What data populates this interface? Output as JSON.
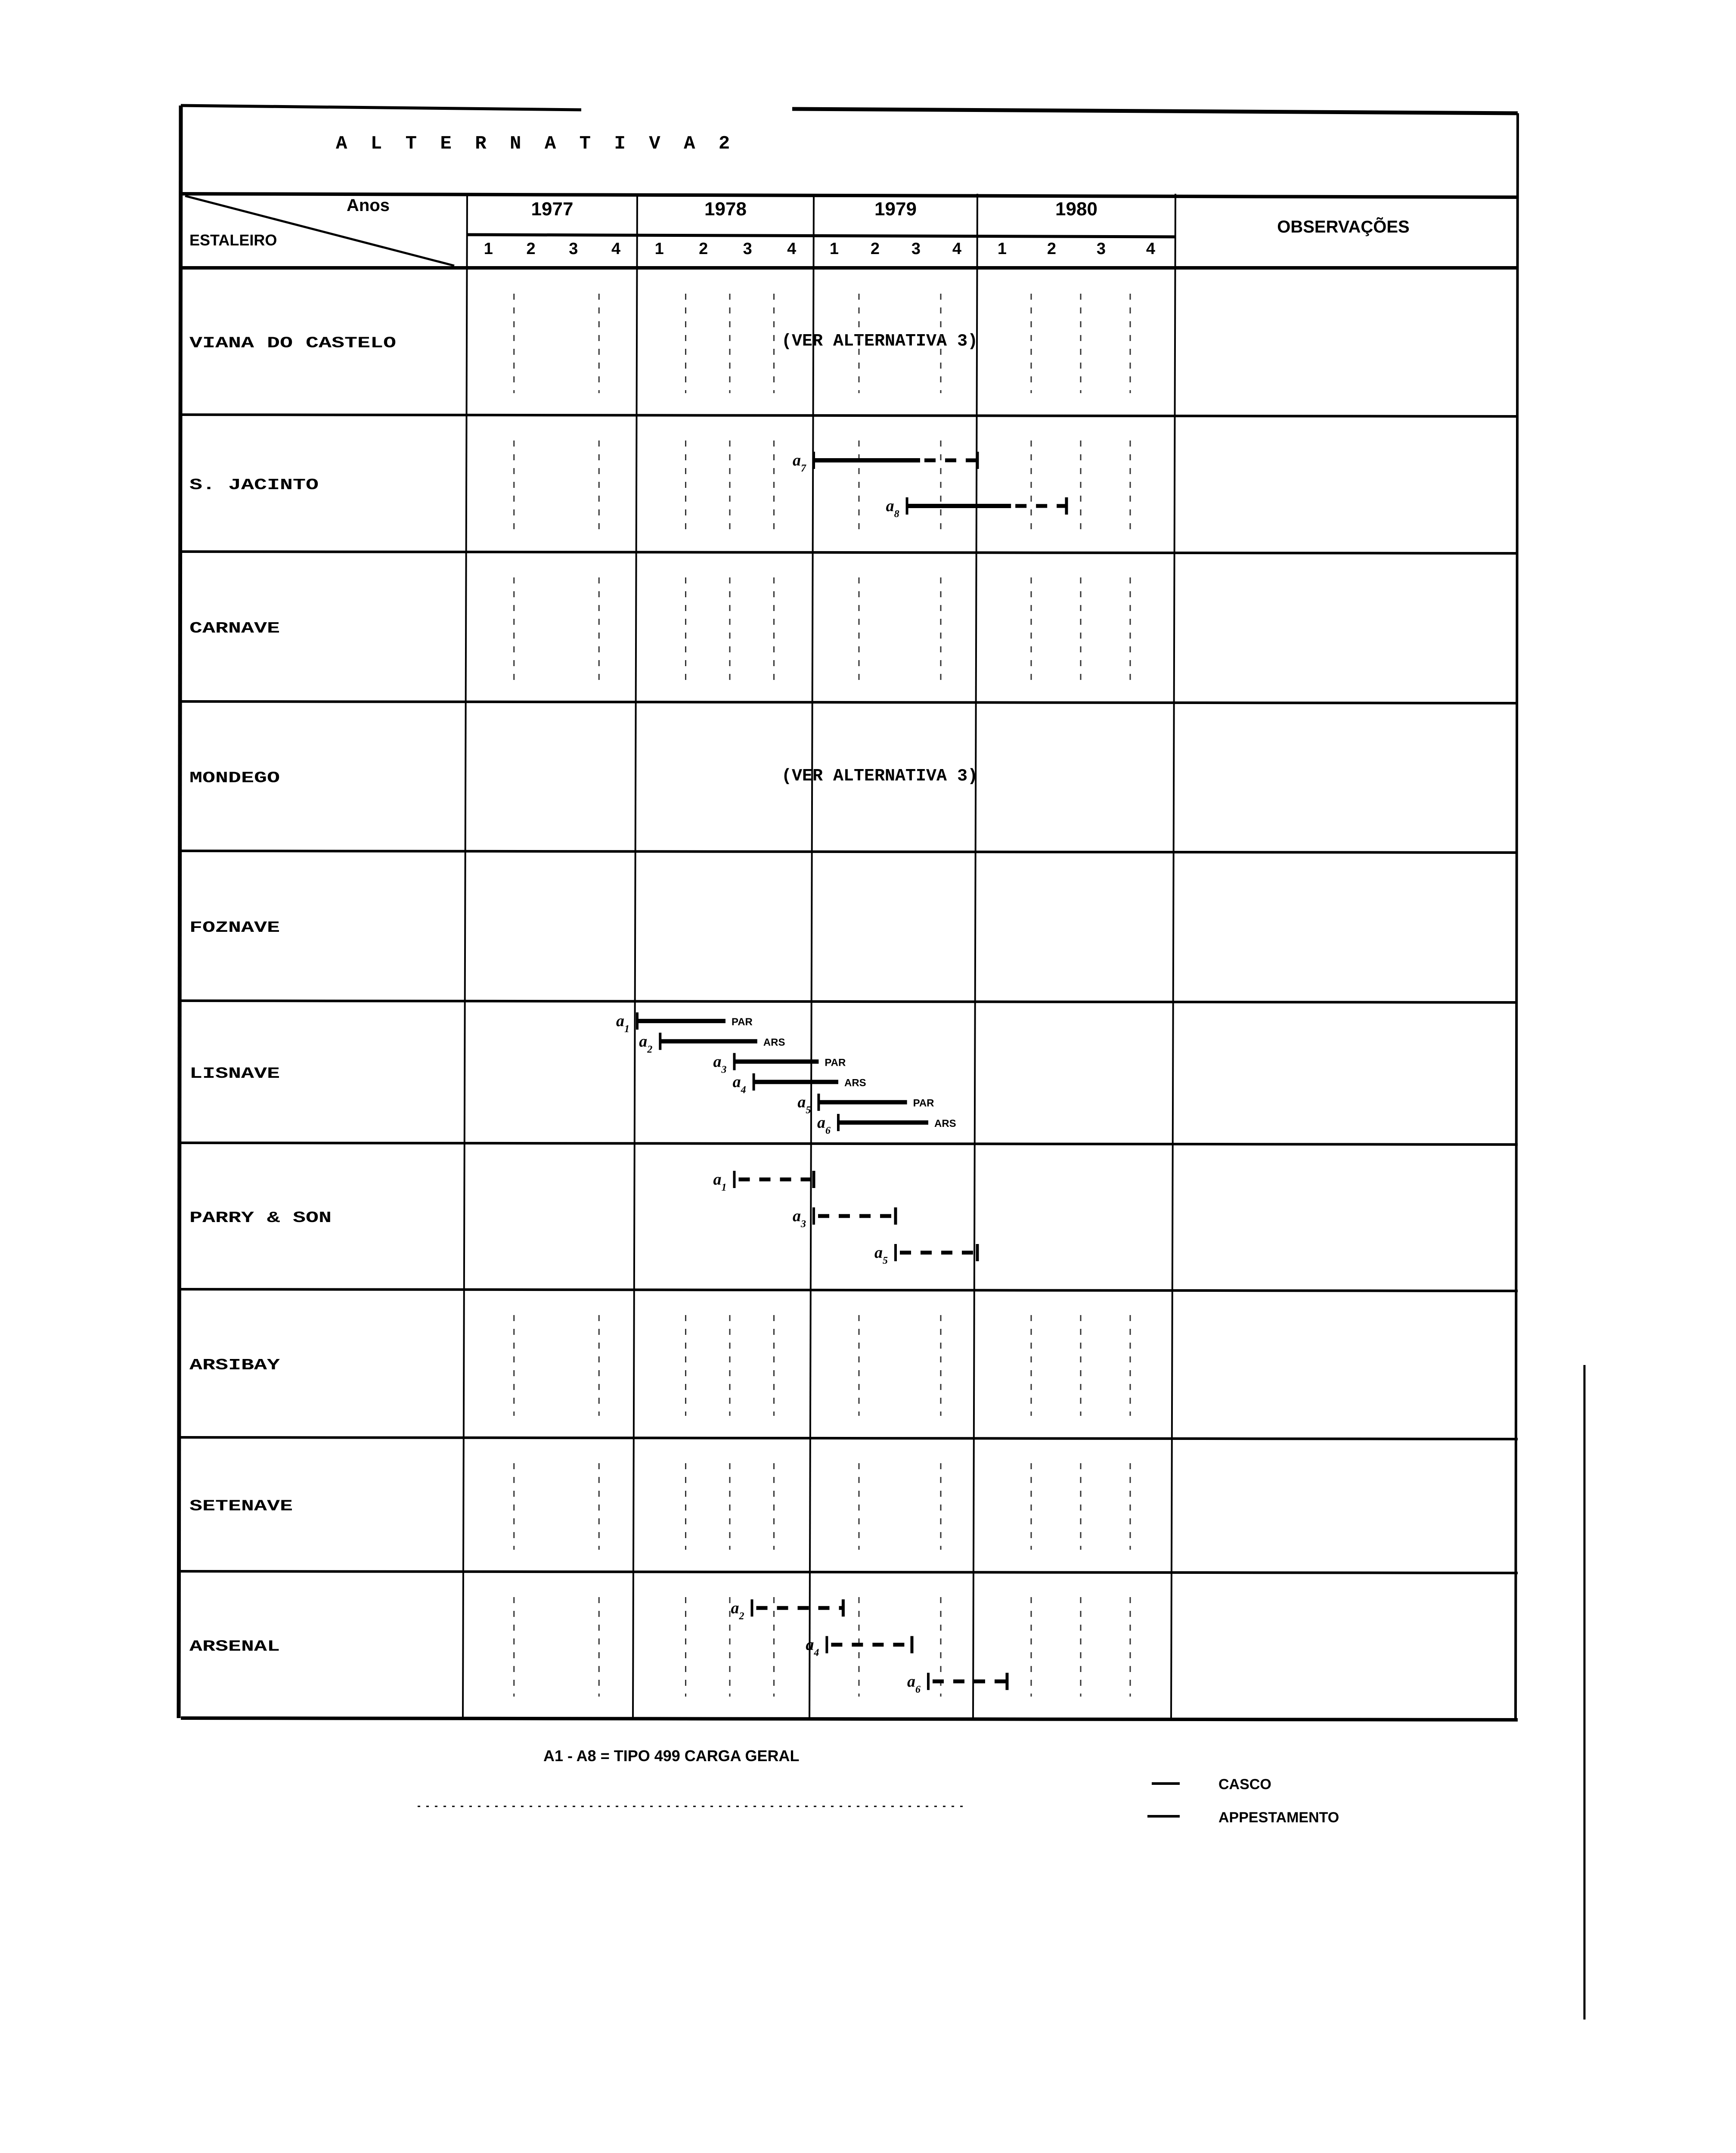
{
  "title": "A L T E R N A T I V A 2",
  "header": {
    "years_label": "Anos",
    "shipyard_label": "ESTALEIRO",
    "years": [
      "1977",
      "1978",
      "1979",
      "1980"
    ],
    "quarters": [
      "1",
      "2",
      "3",
      "4"
    ],
    "observations_label": "OBSERVAÇÕES"
  },
  "rows": [
    {
      "name": "VIANA DO CASTELO",
      "note": "(VER ALTERNATIVA 3)",
      "bars": []
    },
    {
      "name": "S. JACINTO",
      "bars": [
        {
          "label": "a",
          "sub": "7",
          "start": 1979.0,
          "solid_end": 1979.65,
          "end": 1980.0,
          "tag": ""
        },
        {
          "label": "a",
          "sub": "8",
          "start": 1979.57,
          "solid_end": 1980.17,
          "end": 1980.45,
          "tag": ""
        }
      ]
    },
    {
      "name": "CARNAVE",
      "bars": []
    },
    {
      "name": "MONDEGO",
      "note": "(VER ALTERNATIVA 3)",
      "bars": []
    },
    {
      "name": "FOZNAVE",
      "bars": []
    },
    {
      "name": "LISNAVE",
      "bars": [
        {
          "label": "a",
          "sub": "1",
          "start": 1978.0,
          "solid_end": 1978.5,
          "end": 1978.5,
          "tag": "PAR"
        },
        {
          "label": "a",
          "sub": "2",
          "start": 1978.13,
          "solid_end": 1978.68,
          "end": 1978.68,
          "tag": "ARS"
        },
        {
          "label": "a",
          "sub": "3",
          "start": 1978.55,
          "solid_end": 1979.03,
          "end": 1979.03,
          "tag": "PAR"
        },
        {
          "label": "a",
          "sub": "4",
          "start": 1978.66,
          "solid_end": 1979.15,
          "end": 1979.15,
          "tag": "ARS"
        },
        {
          "label": "a",
          "sub": "5",
          "start": 1979.03,
          "solid_end": 1979.57,
          "end": 1979.57,
          "tag": "PAR"
        },
        {
          "label": "a",
          "sub": "6",
          "start": 1979.15,
          "solid_end": 1979.7,
          "end": 1979.7,
          "tag": "ARS"
        }
      ]
    },
    {
      "name": "PARRY & SON",
      "bars": [
        {
          "label": "a",
          "sub": "1",
          "start": 1978.55,
          "solid_end": 1978.55,
          "end": 1979.0,
          "tag": ""
        },
        {
          "label": "a",
          "sub": "3",
          "start": 1979.0,
          "solid_end": 1979.0,
          "end": 1979.5,
          "tag": ""
        },
        {
          "label": "a",
          "sub": "5",
          "start": 1979.5,
          "solid_end": 1979.5,
          "end": 1980.0,
          "tag": ""
        }
      ]
    },
    {
      "name": "ARSIBAY",
      "bars": []
    },
    {
      "name": "SETENAVE",
      "bars": []
    },
    {
      "name": "ARSENAL",
      "bars": [
        {
          "label": "a",
          "sub": "2",
          "start": 1978.65,
          "solid_end": 1978.65,
          "end": 1979.18,
          "tag": ""
        },
        {
          "label": "a",
          "sub": "4",
          "start": 1979.08,
          "solid_end": 1979.08,
          "end": 1979.6,
          "tag": ""
        },
        {
          "label": "a",
          "sub": "6",
          "start": 1979.7,
          "solid_end": 1979.7,
          "end": 1980.15,
          "tag": ""
        }
      ]
    }
  ],
  "footnote": "A1 - A8 = TIPO 499  CARGA GERAL",
  "legend": [
    {
      "label": "CASCO"
    },
    {
      "label": "APPESTAMENTO"
    }
  ]
}
